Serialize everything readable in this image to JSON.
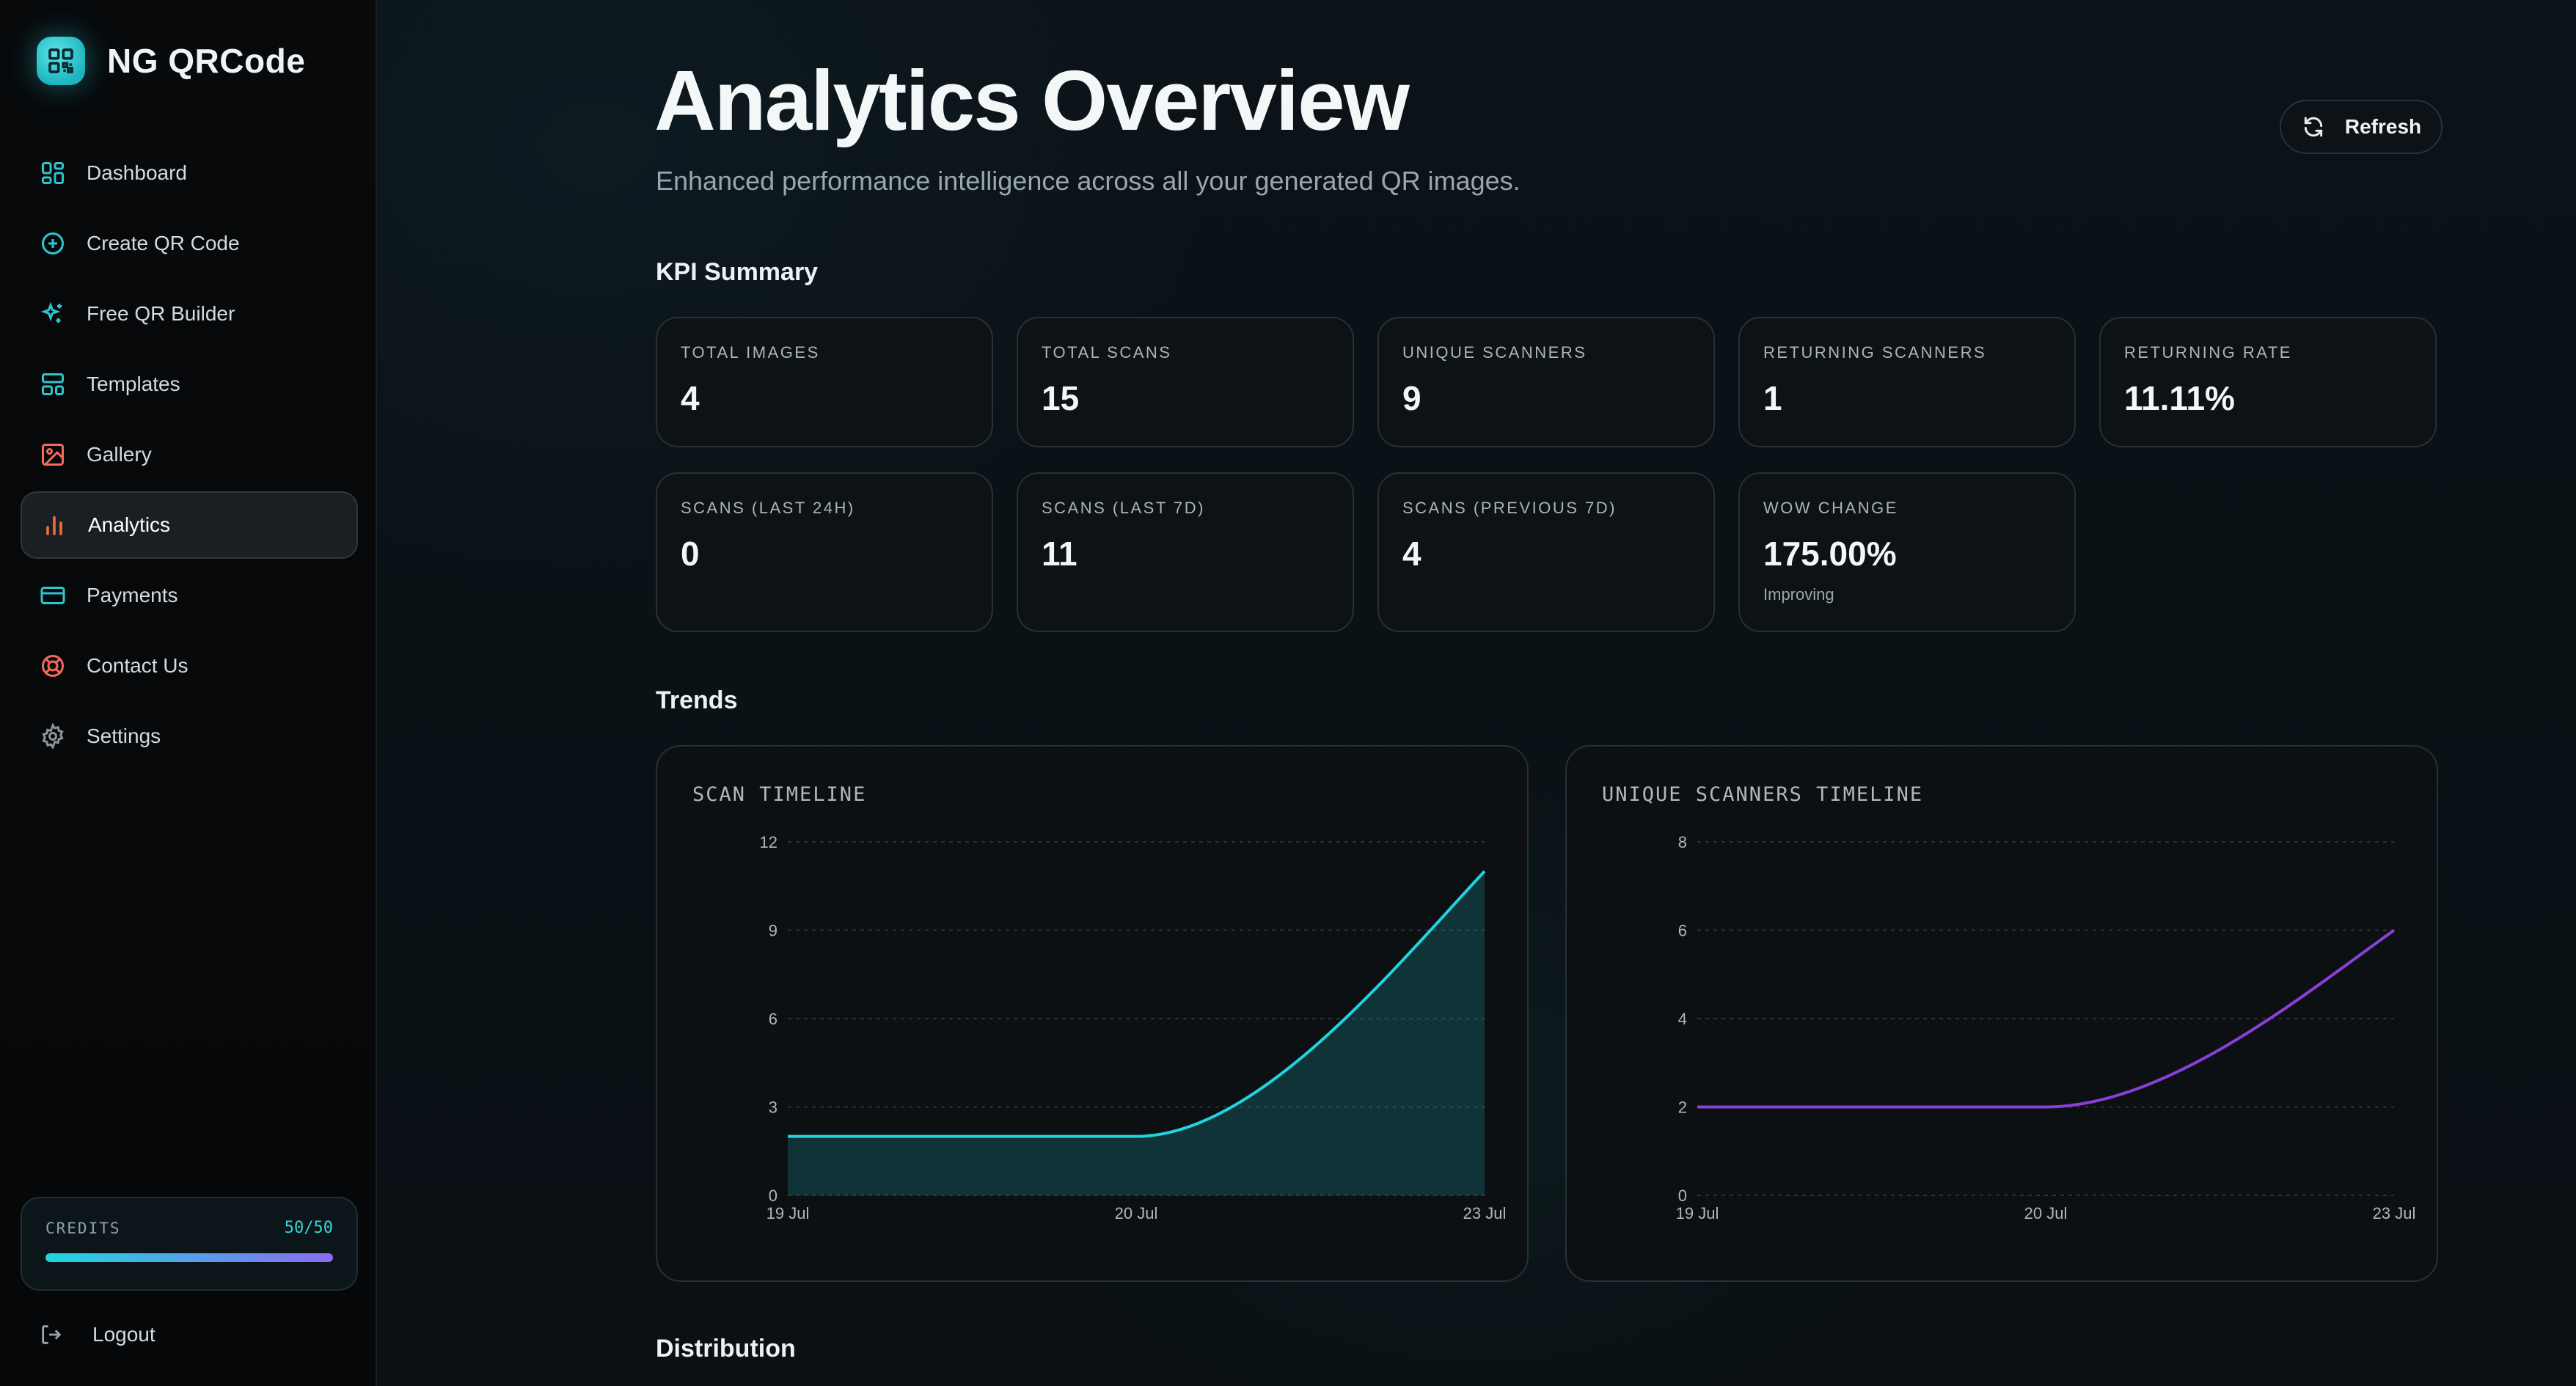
{
  "brand": {
    "name": "NG QRCode",
    "logo_icon": "qr-code-icon"
  },
  "sidebar": {
    "items": [
      {
        "label": "Dashboard",
        "icon": "dashboard-grid-icon",
        "active": false
      },
      {
        "label": "Create QR Code",
        "icon": "plus-circle-icon",
        "active": false
      },
      {
        "label": "Free QR Builder",
        "icon": "sparkles-icon",
        "active": false
      },
      {
        "label": "Templates",
        "icon": "templates-layout-icon",
        "active": false
      },
      {
        "label": "Gallery",
        "icon": "image-icon",
        "active": false
      },
      {
        "label": "Analytics",
        "icon": "bar-chart-icon",
        "active": true
      },
      {
        "label": "Payments",
        "icon": "credit-card-icon",
        "active": false
      },
      {
        "label": "Contact Us",
        "icon": "lifebuoy-icon",
        "active": false
      },
      {
        "label": "Settings",
        "icon": "gear-icon",
        "active": false
      }
    ],
    "credits": {
      "label": "CREDITS",
      "count": "50/50",
      "fraction": 1.0
    },
    "logout": {
      "label": "Logout",
      "icon": "logout-icon"
    }
  },
  "header": {
    "title": "Analytics Overview",
    "subtitle": "Enhanced performance intelligence across all your generated QR images.",
    "refresh_label": "Refresh"
  },
  "sections": {
    "kpi": "KPI Summary",
    "trends": "Trends",
    "distribution": "Distribution"
  },
  "kpis": {
    "total_images": {
      "label": "TOTAL IMAGES",
      "value": "4"
    },
    "total_scans": {
      "label": "TOTAL SCANS",
      "value": "15"
    },
    "unique_scanners": {
      "label": "UNIQUE SCANNERS",
      "value": "9"
    },
    "returning_scanners": {
      "label": "RETURNING SCANNERS",
      "value": "1"
    },
    "returning_rate": {
      "label": "RETURNING RATE",
      "value": "11.11%"
    },
    "scans_24h": {
      "label": "SCANS (LAST 24H)",
      "value": "0"
    },
    "scans_7d": {
      "label": "SCANS (LAST 7D)",
      "value": "11"
    },
    "scans_prev_7d": {
      "label": "SCANS (PREVIOUS 7D)",
      "value": "4"
    },
    "wow_change": {
      "label": "WOW CHANGE",
      "value": "175.00%",
      "note": "Improving"
    }
  },
  "chart_data": [
    {
      "type": "area",
      "title": "SCAN TIMELINE",
      "x": [
        "19 Jul",
        "20 Jul",
        "23 Jul"
      ],
      "series": [
        {
          "values": [
            2,
            2,
            11
          ],
          "color": "#22d3df"
        }
      ],
      "ylim": [
        0,
        12
      ],
      "yticks": [
        0,
        3,
        6,
        9,
        12
      ],
      "grid": true
    },
    {
      "type": "line",
      "title": "UNIQUE SCANNERS TIMELINE",
      "x": [
        "19 Jul",
        "20 Jul",
        "23 Jul"
      ],
      "series": [
        {
          "values": [
            2,
            2,
            6
          ],
          "color": "#8b3fd9"
        }
      ],
      "ylim": [
        0,
        8
      ],
      "yticks": [
        0,
        2,
        4,
        6,
        8
      ],
      "grid": true
    }
  ]
}
